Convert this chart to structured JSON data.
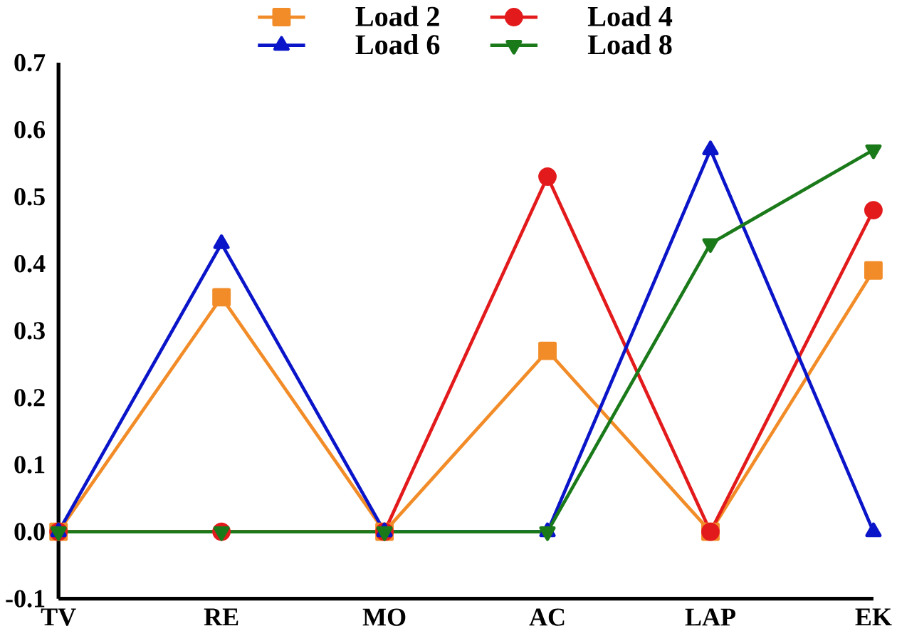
{
  "chart_data": {
    "type": "line",
    "categories": [
      "TV",
      "RE",
      "MO",
      "AC",
      "LAP",
      "EK"
    ],
    "series": [
      {
        "name": "Load 2",
        "color": "#f28c28",
        "marker": "square",
        "values": [
          0,
          0.35,
          0,
          0.27,
          0,
          0.39
        ]
      },
      {
        "name": "Load 4",
        "color": "#e31a1c",
        "marker": "circle",
        "values": [
          0,
          0,
          0,
          0.53,
          0,
          0.48
        ]
      },
      {
        "name": "Load 6",
        "color": "#0a14c8",
        "marker": "triangle",
        "values": [
          0,
          0.43,
          0,
          0,
          0.57,
          0
        ]
      },
      {
        "name": "Load 8",
        "color": "#1a7a1a",
        "marker": "triangle-down",
        "values": [
          0,
          0,
          0,
          0,
          0.43,
          0.57
        ]
      }
    ],
    "ylim": [
      -0.1,
      0.7
    ],
    "yticks": [
      {
        "value": -0.1,
        "label": "-0.1"
      },
      {
        "value": 0,
        "label": "0.0"
      },
      {
        "value": 0.1,
        "label": "0.1"
      },
      {
        "value": 0.2,
        "label": "0.2"
      },
      {
        "value": 0.3,
        "label": "0.3"
      },
      {
        "value": 0.4,
        "label": "0.4"
      },
      {
        "value": 0.5,
        "label": "0.5"
      },
      {
        "value": 0.6,
        "label": "0.6"
      },
      {
        "value": 0.7,
        "label": "0.7"
      }
    ],
    "grid": false,
    "legend": "top",
    "line_style": "solid"
  }
}
